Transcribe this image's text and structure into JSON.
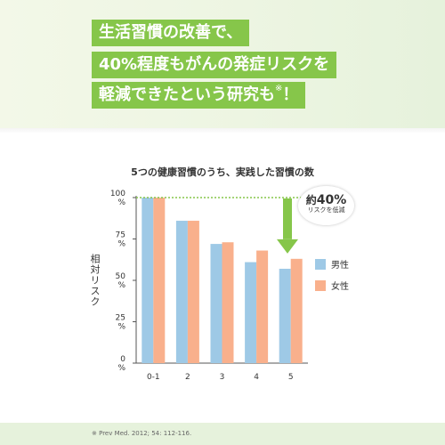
{
  "header": {
    "line1": "生活習慣の改善で、",
    "line2": "40%程度もがんの発症リスクを",
    "line3_main": "軽減できたという研究も",
    "line3_mark": "※",
    "line3_end": "！"
  },
  "chart_data": {
    "type": "bar",
    "title": "5つの健康習慣のうち、実践した習慣の数",
    "ylabel": "相対リスク",
    "categories": [
      "0-1",
      "2",
      "3",
      "4",
      "5"
    ],
    "y_ticks": [
      "0%",
      "25%",
      "50%",
      "75%",
      "100%"
    ],
    "ylim": [
      0,
      100
    ],
    "grid": false,
    "legend_position": "right",
    "series": [
      {
        "name": "男性",
        "color": "#9ec9e6",
        "values": [
          100,
          86,
          72,
          61,
          57
        ]
      },
      {
        "name": "女性",
        "color": "#f9b08c",
        "values": [
          100,
          86,
          73,
          68,
          63
        ]
      }
    ],
    "reference_line": {
      "value": 100,
      "color": "#86c64a",
      "style": "dotted"
    },
    "annotation": {
      "prefix": "約",
      "value": "40%",
      "text": "リスクを低減"
    },
    "arrow_color": "#86c64a"
  },
  "footer": {
    "citation": "※ Prev Med. 2012; 54: 112-116."
  }
}
